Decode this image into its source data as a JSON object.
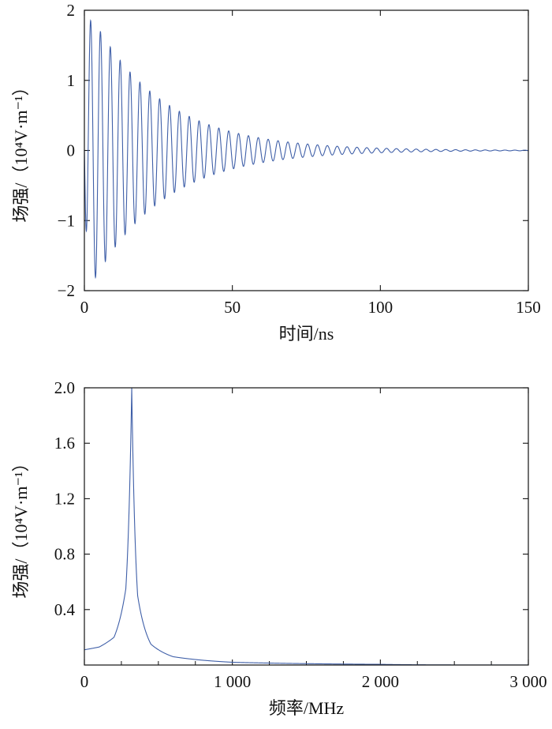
{
  "chart_data": [
    {
      "type": "line",
      "title": "",
      "xlabel": "时间/ns",
      "ylabel": "场强/（10⁴V·m⁻¹）",
      "xlim": [
        0,
        150
      ],
      "ylim": [
        -2,
        2
      ],
      "xticks": [
        0,
        50,
        100,
        150
      ],
      "xtick_labels": [
        "0",
        "50",
        "100",
        "150"
      ],
      "yticks": [
        -2,
        -1,
        0,
        1,
        2
      ],
      "ytick_labels": [
        "−2",
        "−1",
        "0",
        "1",
        "2"
      ],
      "grid": false,
      "legend": "none",
      "series": [
        {
          "color": "#3f5fa8",
          "model": "damped sinusoid",
          "frequency_ghz": 0.3,
          "peak_amplitude": 1.95,
          "first_peak_ns": 2.1,
          "decay_tau_ns": 24,
          "rise_tau_ns": 0.7,
          "x": [
            0,
            2.1,
            3.7,
            5.4,
            7.1,
            8.7,
            15,
            25,
            35,
            50,
            70,
            100,
            150
          ],
          "values": [
            0,
            1.93,
            -1.79,
            1.62,
            -1.49,
            1.37,
            1.06,
            0.69,
            0.45,
            0.24,
            0.1,
            0.03,
            0
          ]
        }
      ]
    },
    {
      "type": "line",
      "title": "",
      "xlabel": "频率/MHz",
      "ylabel": "场强/（10⁴V·m⁻¹）",
      "xlim": [
        0,
        3000
      ],
      "ylim": [
        0,
        2.0
      ],
      "xticks": [
        0,
        1000,
        2000,
        3000
      ],
      "xtick_labels": [
        "0",
        "1 000",
        "2 000",
        "3 000"
      ],
      "yticks": [
        0.4,
        0.8,
        1.2,
        1.6,
        2.0
      ],
      "ytick_labels": [
        "0.4",
        "0.8",
        "1.2",
        "1.6",
        "2.0"
      ],
      "grid": false,
      "legend": "none",
      "series": [
        {
          "color": "#3f5fa8",
          "model": "resonance peak",
          "peak_frequency_mhz": 320,
          "peak_value": 2.0,
          "x": [
            0,
            100,
            200,
            280,
            320,
            360,
            450,
            600,
            1000,
            2000,
            3000
          ],
          "values": [
            0.11,
            0.13,
            0.2,
            0.55,
            2.0,
            0.5,
            0.15,
            0.06,
            0.02,
            0.005,
            0.0
          ]
        }
      ]
    }
  ]
}
